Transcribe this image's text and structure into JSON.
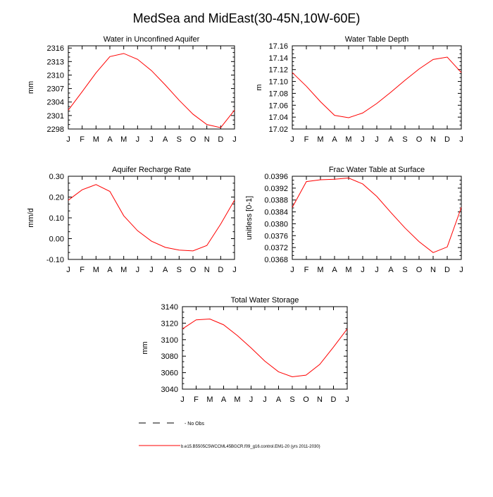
{
  "page_title": "MedSea and MidEast(30-45N,10W-60E)",
  "legend": {
    "no_obs_label": "- No Obs",
    "model_label": "b.e15.B5505C5WCCML45BGCR.f09_g16.control.EM1-20 (yrs 2011-2030)",
    "no_obs_color": "#000000",
    "model_color": "#ff0000"
  },
  "chart_data": [
    {
      "type": "line",
      "title": "Water in Unconfined Aquifer",
      "ylabel": "mm",
      "xlabel": "",
      "categories": [
        "J",
        "F",
        "M",
        "A",
        "M",
        "J",
        "J",
        "A",
        "S",
        "O",
        "N",
        "D",
        "J"
      ],
      "ylim": [
        2298,
        2316.5
      ],
      "yticks": [
        2298,
        2301,
        2304,
        2307,
        2310,
        2313,
        2316
      ],
      "ytick_labels": [
        "2298",
        "2301",
        "2304",
        "2307",
        "2310",
        "2313",
        "2316"
      ],
      "series": [
        {
          "name": "model",
          "color": "#ff0000",
          "values": [
            2302.2,
            2306.3,
            2310.5,
            2314.1,
            2314.8,
            2313.5,
            2311.0,
            2307.8,
            2304.4,
            2301.3,
            2299.0,
            2298.3,
            2302.2
          ]
        }
      ]
    },
    {
      "type": "line",
      "title": "Water Table Depth",
      "ylabel": "m",
      "xlabel": "",
      "categories": [
        "J",
        "F",
        "M",
        "A",
        "M",
        "J",
        "J",
        "A",
        "S",
        "O",
        "N",
        "D",
        "J"
      ],
      "ylim": [
        17.02,
        17.16
      ],
      "yticks": [
        17.02,
        17.04,
        17.06,
        17.08,
        17.1,
        17.12,
        17.14,
        17.16
      ],
      "ytick_labels": [
        "17.02",
        "17.04",
        "17.06",
        "17.08",
        "17.10",
        "17.12",
        "17.14",
        "17.16"
      ],
      "series": [
        {
          "name": "model",
          "color": "#ff0000",
          "values": [
            17.115,
            17.092,
            17.066,
            17.043,
            17.039,
            17.047,
            17.063,
            17.082,
            17.102,
            17.121,
            17.137,
            17.141,
            17.115
          ]
        }
      ]
    },
    {
      "type": "line",
      "title": "Aquifer Recharge Rate",
      "ylabel": "mm/d",
      "xlabel": "",
      "categories": [
        "J",
        "F",
        "M",
        "A",
        "M",
        "J",
        "J",
        "A",
        "S",
        "O",
        "N",
        "D",
        "J"
      ],
      "ylim": [
        -0.1,
        0.3
      ],
      "yticks": [
        -0.1,
        0.0,
        0.1,
        0.2,
        0.3
      ],
      "ytick_labels": [
        "-0.10",
        "0.00",
        "0.10",
        "0.20",
        "0.30"
      ],
      "series": [
        {
          "name": "model",
          "color": "#ff0000",
          "values": [
            0.185,
            0.235,
            0.26,
            0.227,
            0.11,
            0.038,
            -0.012,
            -0.042,
            -0.055,
            -0.059,
            -0.033,
            0.07,
            0.185
          ]
        }
      ]
    },
    {
      "type": "line",
      "title": "Frac Water Table at Surface",
      "ylabel": "unitless [0-1]",
      "xlabel": "",
      "categories": [
        "J",
        "F",
        "M",
        "A",
        "M",
        "J",
        "J",
        "A",
        "S",
        "O",
        "N",
        "D",
        "J"
      ],
      "ylim": [
        0.0368,
        0.0396
      ],
      "yticks": [
        0.0368,
        0.0372,
        0.0376,
        0.038,
        0.0384,
        0.0388,
        0.0392,
        0.0396
      ],
      "ytick_labels": [
        "0.0368",
        "0.0372",
        "0.0376",
        "0.0380",
        "0.0384",
        "0.0388",
        "0.0392",
        "0.0396"
      ],
      "series": [
        {
          "name": "model",
          "color": "#ff0000",
          "values": [
            0.03855,
            0.03942,
            0.03948,
            0.0395,
            0.03954,
            0.03934,
            0.03892,
            0.03838,
            0.03786,
            0.0374,
            0.03703,
            0.03722,
            0.03855
          ]
        }
      ]
    },
    {
      "type": "line",
      "title": "Total Water Storage",
      "ylabel": "mm",
      "xlabel": "",
      "categories": [
        "J",
        "F",
        "M",
        "A",
        "M",
        "J",
        "J",
        "A",
        "S",
        "O",
        "N",
        "D",
        "J"
      ],
      "ylim": [
        3040,
        3140
      ],
      "yticks": [
        3040,
        3060,
        3080,
        3100,
        3120,
        3140
      ],
      "ytick_labels": [
        "3040",
        "3060",
        "3080",
        "3100",
        "3120",
        "3140"
      ],
      "series": [
        {
          "name": "model",
          "color": "#ff0000",
          "values": [
            3113,
            3124,
            3125,
            3118,
            3105,
            3090,
            3074,
            3061,
            3055,
            3057,
            3070,
            3091,
            3113
          ]
        }
      ]
    }
  ]
}
